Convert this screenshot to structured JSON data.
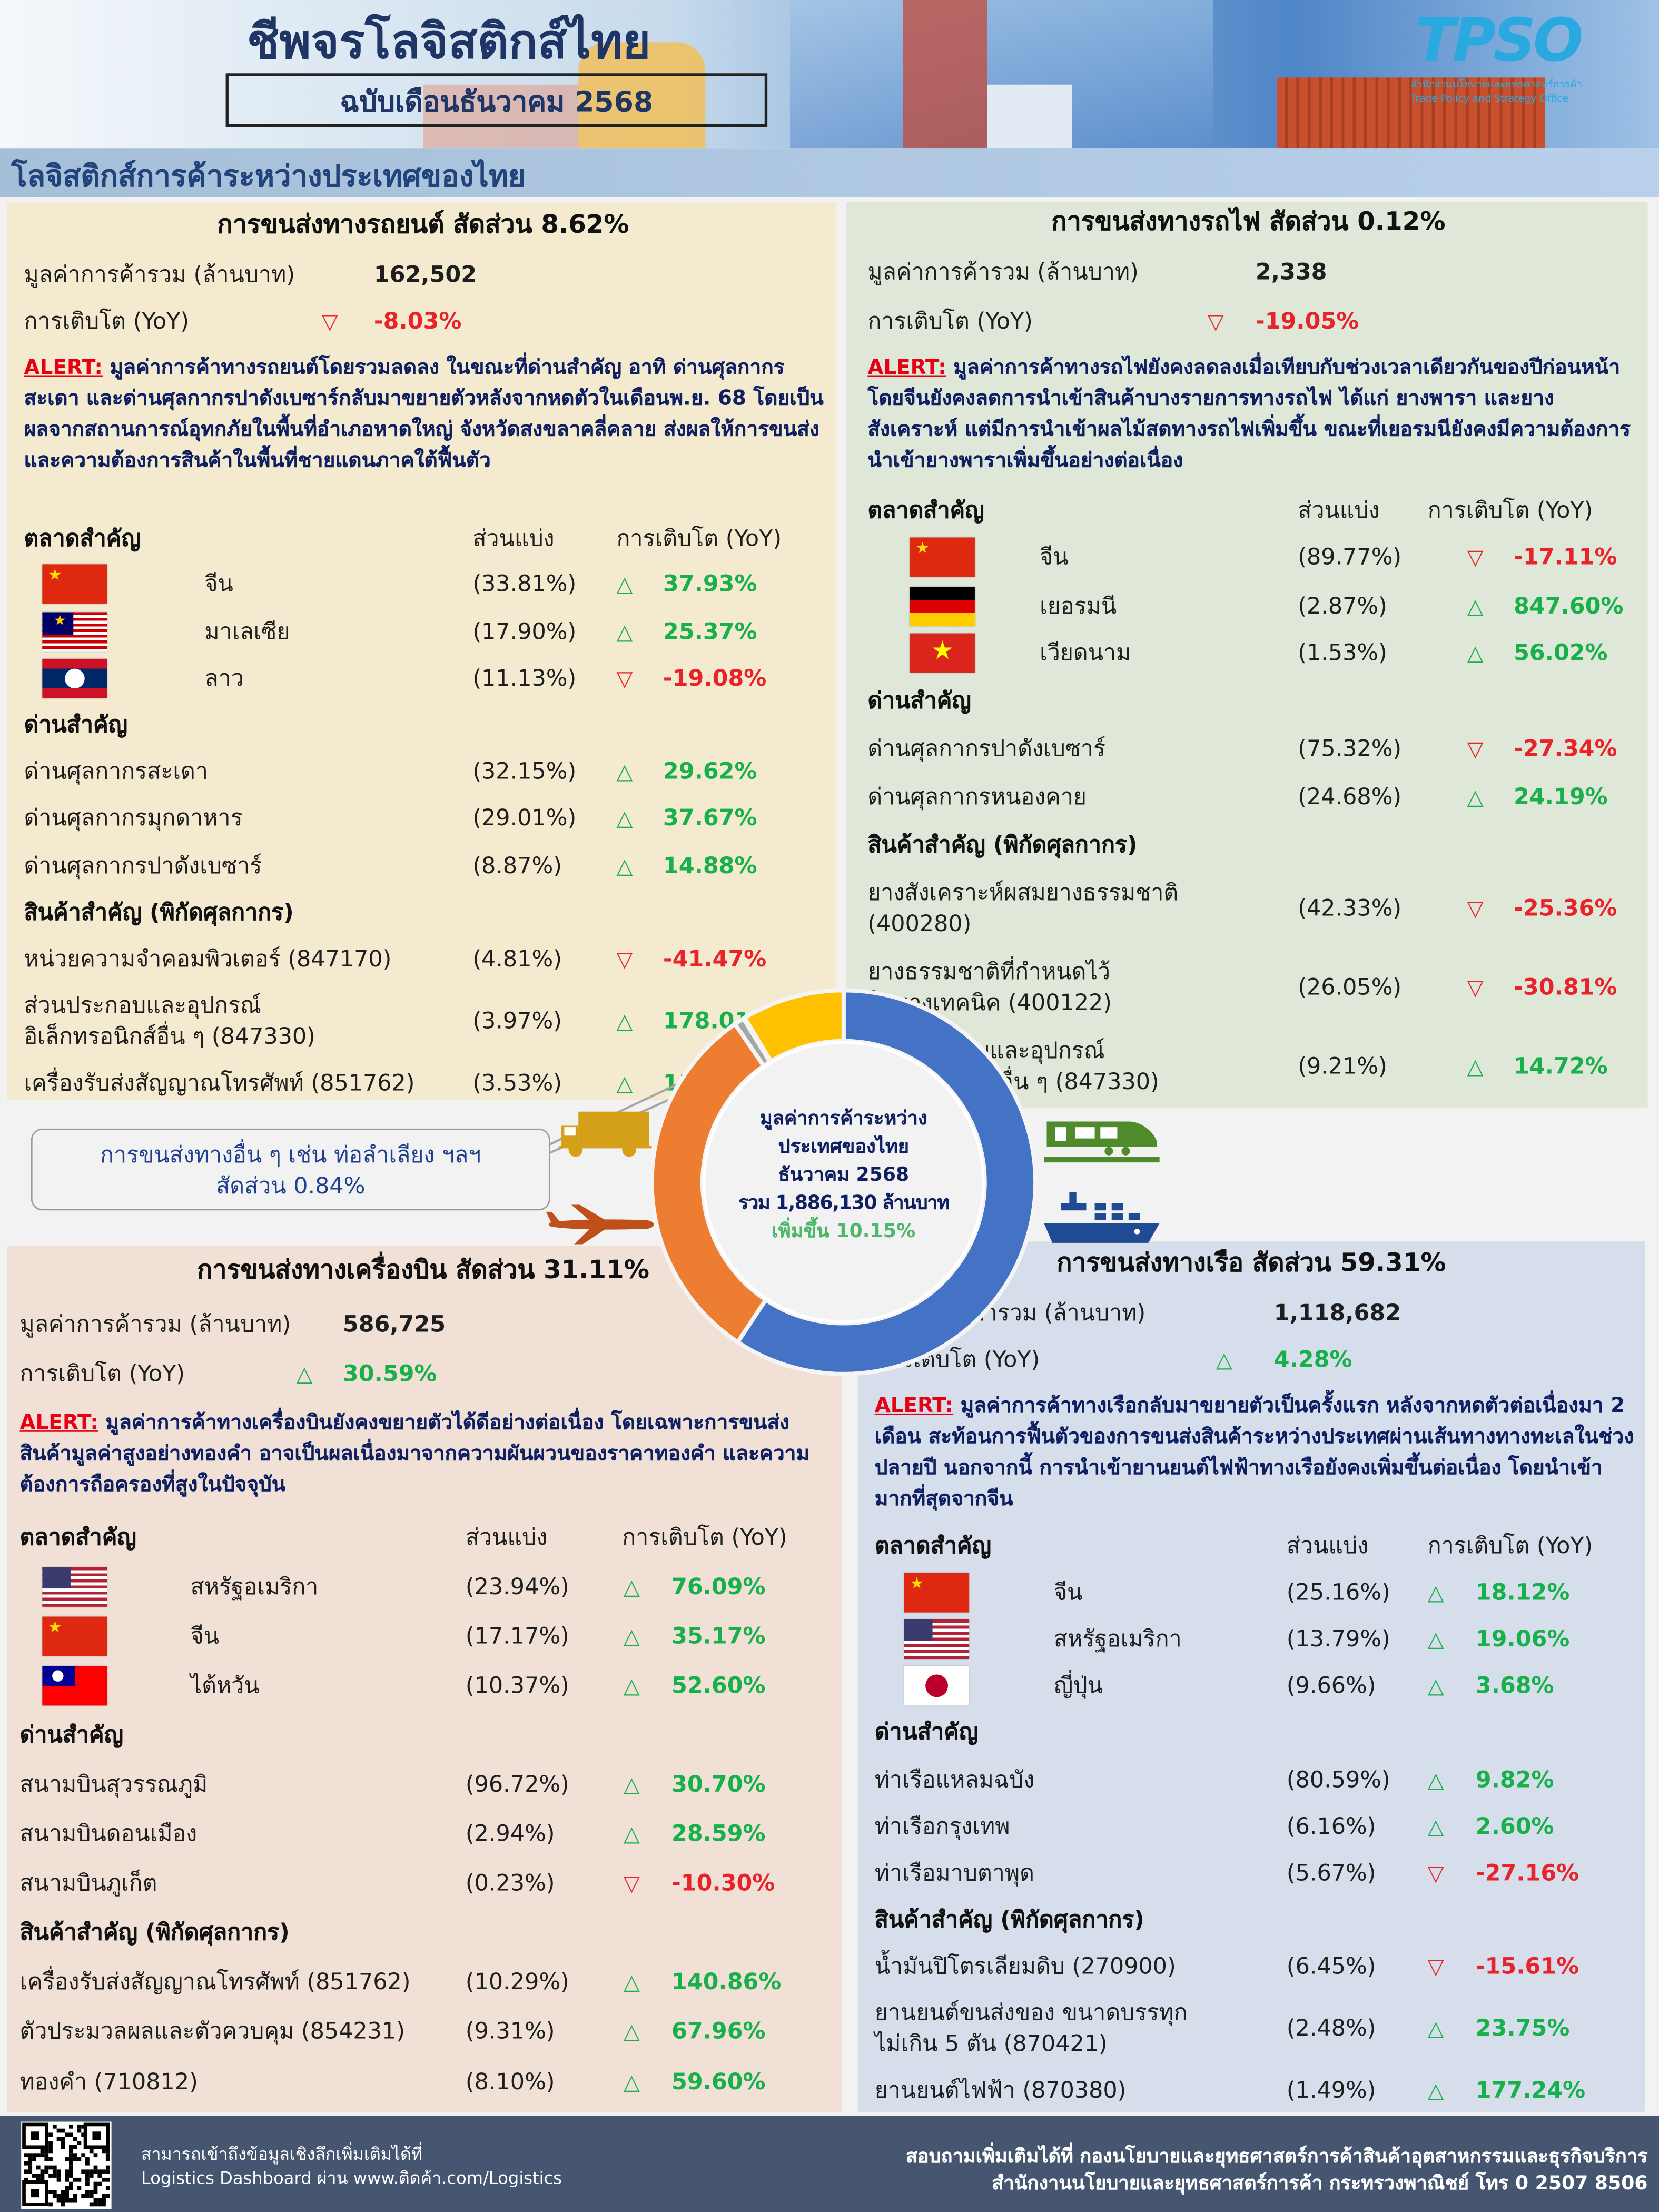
{
  "header": {
    "title": "ชีพจรโลจิสติกส์ไทย",
    "subtitle": "ฉบับเดือนธันวาคม 2568",
    "logo_text": "TPSO",
    "logo_org_th": "สำนักงานนโยบายและยุทธศาสตร์การค้า",
    "logo_org_en": "Trade Policy and Strategy Office",
    "section_title": "โลจิสติกส์การค้าระหว่างประเทศของไทย"
  },
  "colors": {
    "navy": "#0f2062",
    "up": "#18b04a",
    "down": "#e8242a",
    "alert": "#e60012",
    "car_bg": "#f3ead0",
    "rail_bg": "#dfe7d8",
    "air_bg": "#f0e0d6",
    "sea_bg": "#d6deec"
  },
  "icons": {
    "up": "△",
    "down": "▽",
    "truck": "truck-icon",
    "train": "train-icon",
    "plane": "plane-icon",
    "ship": "ship-icon"
  },
  "common": {
    "total_label": "มูลค่าการค้ารวม (ล้านบาท)",
    "growth_label": "การเติบโต (YoY)",
    "alert_label": "ALERT:",
    "markets_header": "ตลาดสำคัญ",
    "share_header": "ส่วนแบ่ง",
    "growth_header": "การเติบโต (YoY)",
    "checkpoints_header": "ด่านสำคัญ",
    "products_header": "สินค้าสำคัญ (พิกัดศุลกากร)"
  },
  "panels": {
    "car": {
      "title": "การขนส่งทางรถยนต์ สัดส่วน 8.62%",
      "total": "162,502",
      "growth": "-8.03%",
      "dir": "down",
      "alert": "มูลค่าการค้าทางรถยนต์โดยรวมลดลง ในขณะที่ด่านสำคัญ อาทิ ด่านศุลกากรสะเดา และด่านศุลกากรปาดังเบซาร์กลับมาขยายตัวหลังจากหดตัวในเดือนพ.ย. 68 โดยเป็นผลจากสถานการณ์อุทกภัยในพื้นที่อำเภอหาดใหญ่ จังหวัดสงขลาคลี่คลาย ส่งผลให้การขนส่งและความต้องการสินค้าในพื้นที่ชายแดนภาคใต้ฟื้นตัว",
      "markets": [
        {
          "name": "จีน",
          "flag": "china",
          "share": "(33.81%)",
          "growth": "37.93%",
          "dir": "up"
        },
        {
          "name": "มาเลเซีย",
          "flag": "malaysia",
          "share": "(17.90%)",
          "growth": "25.37%",
          "dir": "up"
        },
        {
          "name": "ลาว",
          "flag": "laos",
          "share": "(11.13%)",
          "growth": "-19.08%",
          "dir": "down"
        }
      ],
      "checkpoints": [
        {
          "name": "ด่านศุลกากรสะเดา",
          "share": "(32.15%)",
          "growth": "29.62%",
          "dir": "up"
        },
        {
          "name": "ด่านศุลกากรมุกดาหาร",
          "share": "(29.01%)",
          "growth": "37.67%",
          "dir": "up"
        },
        {
          "name": "ด่านศุลกากรปาดังเบซาร์",
          "share": "(8.87%)",
          "growth": "14.88%",
          "dir": "up"
        }
      ],
      "products": [
        {
          "name": "หน่วยความจำคอมพิวเตอร์ (847170)",
          "share": "(4.81%)",
          "growth": "-41.47%",
          "dir": "down"
        },
        {
          "name": "ส่วนประกอบและอุปกรณ์\nอิเล็กทรอนิกส์อื่น ๆ (847330)",
          "share": "(3.97%)",
          "growth": "178.01%",
          "dir": "up"
        },
        {
          "name": "เครื่องรับส่งสัญญาณโทรศัพท์ (851762)",
          "share": "(3.53%)",
          "growth": "158.22%",
          "dir": "up"
        }
      ]
    },
    "rail": {
      "title": "การขนส่งทางรถไฟ สัดส่วน 0.12%",
      "total": "2,338",
      "growth": "-19.05%",
      "dir": "down",
      "alert": "มูลค่าการค้าทางรถไฟยังคงลดลงเมื่อเทียบกับช่วงเวลาเดียวกันของปีก่อนหน้า โดยจีนยังคงลดการนำเข้าสินค้าบางรายการทางรถไฟ ได้แก่ ยางพารา และยางสังเคราะห์ แต่มีการนำเข้าผลไม้สดทางรถไฟเพิ่มขึ้น ขณะที่เยอรมนียังคงมีความต้องการนำเข้ายางพาราเพิ่มขึ้นอย่างต่อเนื่อง",
      "markets": [
        {
          "name": "จีน",
          "flag": "china",
          "share": "(89.77%)",
          "growth": "-17.11%",
          "dir": "down"
        },
        {
          "name": "เยอรมนี",
          "flag": "germany",
          "share": "(2.87%)",
          "growth": "847.60%",
          "dir": "up"
        },
        {
          "name": "เวียดนาม",
          "flag": "vietnam",
          "share": "(1.53%)",
          "growth": "56.02%",
          "dir": "up"
        }
      ],
      "checkpoints": [
        {
          "name": "ด่านศุลกากรปาดังเบซาร์",
          "share": "(75.32%)",
          "growth": "-27.34%",
          "dir": "down"
        },
        {
          "name": "ด่านศุลกากรหนองคาย",
          "share": "(24.68%)",
          "growth": "24.19%",
          "dir": "up"
        }
      ],
      "products": [
        {
          "name": "ยางสังเคราะห์ผสมยางธรรมชาติ\n(400280)",
          "share": "(42.33%)",
          "growth": "-25.36%",
          "dir": "down"
        },
        {
          "name": "ยางธรรมชาติที่กำหนดไว้\nในทางเทคนิค (400122)",
          "share": "(26.05%)",
          "growth": "-30.81%",
          "dir": "down"
        },
        {
          "name": "ส่วนประกอบและอุปกรณ์\nอิเล็กทรอนิกส์อื่น ๆ (847330)",
          "share": "(9.21%)",
          "growth": "14.72%",
          "dir": "up"
        }
      ]
    },
    "air": {
      "title": "การขนส่งทางเครื่องบิน สัดส่วน 31.11%",
      "total": "586,725",
      "growth": "30.59%",
      "dir": "up",
      "alert": "มูลค่าการค้าทางเครื่องบินยังคงขยายตัวได้ดีอย่างต่อเนื่อง โดยเฉพาะการขนส่งสินค้ามูลค่าสูงอย่างทองคำ อาจเป็นผลเนื่องมาจากความผันผวนของราคาทองคำ และความต้องการถือครองที่สูงในปัจจุบัน",
      "markets": [
        {
          "name": "สหรัฐอเมริกา",
          "flag": "usa",
          "share": "(23.94%)",
          "growth": "76.09%",
          "dir": "up"
        },
        {
          "name": "จีน",
          "flag": "china",
          "share": "(17.17%)",
          "growth": "35.17%",
          "dir": "up"
        },
        {
          "name": "ไต้หวัน",
          "flag": "taiwan",
          "share": "(10.37%)",
          "growth": "52.60%",
          "dir": "up"
        }
      ],
      "checkpoints": [
        {
          "name": "สนามบินสุวรรณภูมิ",
          "share": "(96.72%)",
          "growth": "30.70%",
          "dir": "up"
        },
        {
          "name": "สนามบินดอนเมือง",
          "share": "(2.94%)",
          "growth": "28.59%",
          "dir": "up"
        },
        {
          "name": "สนามบินภูเก็ต",
          "share": "(0.23%)",
          "growth": "-10.30%",
          "dir": "down"
        }
      ],
      "products": [
        {
          "name": "เครื่องรับส่งสัญญาณโทรศัพท์ (851762)",
          "share": "(10.29%)",
          "growth": "140.86%",
          "dir": "up"
        },
        {
          "name": "ตัวประมวลผลและตัวควบคุม (854231)",
          "share": "(9.31%)",
          "growth": "67.96%",
          "dir": "up"
        },
        {
          "name": "ทองคำ (710812)",
          "share": "(8.10%)",
          "growth": "59.60%",
          "dir": "up"
        }
      ]
    },
    "sea": {
      "title": "การขนส่งทางเรือ สัดส่วน 59.31%",
      "total": "1,118,682",
      "growth": "4.28%",
      "dir": "up",
      "alert": "มูลค่าการค้าทางเรือกลับมาขยายตัวเป็นครั้งแรก หลังจากหดตัวต่อเนื่องมา 2 เดือน สะท้อนการฟื้นตัวของการขนส่งสินค้าระหว่างประเทศผ่านเส้นทางทางทะเลในช่วงปลายปี นอกจากนี้ การนำเข้ายานยนต์ไฟฟ้าทางเรือยังคงเพิ่มขึ้นต่อเนื่อง โดยนำเข้ามากที่สุดจากจีน",
      "markets": [
        {
          "name": "จีน",
          "flag": "china",
          "share": "(25.16%)",
          "growth": "18.12%",
          "dir": "up"
        },
        {
          "name": "สหรัฐอเมริกา",
          "flag": "usa",
          "share": "(13.79%)",
          "growth": "19.06%",
          "dir": "up"
        },
        {
          "name": "ญี่ปุ่น",
          "flag": "japan",
          "share": "(9.66%)",
          "growth": "3.68%",
          "dir": "up"
        }
      ],
      "checkpoints": [
        {
          "name": "ท่าเรือแหลมฉบัง",
          "share": "(80.59%)",
          "growth": "9.82%",
          "dir": "up"
        },
        {
          "name": "ท่าเรือกรุงเทพ",
          "share": "(6.16%)",
          "growth": "2.60%",
          "dir": "up"
        },
        {
          "name": "ท่าเรือมาบตาพุด",
          "share": "(5.67%)",
          "growth": "-27.16%",
          "dir": "down"
        }
      ],
      "products": [
        {
          "name": "น้ำมันปิโตรเลียมดิบ (270900)",
          "share": "(6.45%)",
          "growth": "-15.61%",
          "dir": "down"
        },
        {
          "name": "ยานยนต์ขนส่งของ ขนาดบรรทุก\nไม่เกิน 5 ตัน (870421)",
          "share": "(2.48%)",
          "growth": "23.75%",
          "dir": "up"
        },
        {
          "name": "ยานยนต์ไฟฟ้า (870380)",
          "share": "(1.49%)",
          "growth": "177.24%",
          "dir": "up"
        }
      ]
    }
  },
  "other": {
    "line1": "การขนส่งทางอื่น ๆ เช่น ท่อลำเลียง ฯลฯ",
    "line2": "สัดส่วน 0.84%"
  },
  "center": {
    "line1": "มูลค่าการค้าระหว่าง",
    "line2": "ประเทศของไทย",
    "line3": "ธันวาคม 2568",
    "line4": "รวม 1,886,130 ล้านบาท",
    "line5": "เพิ่มขึ้น 10.15%"
  },
  "chart_data": {
    "type": "pie",
    "title": "มูลค่าการค้าระหว่างประเทศของไทย ธันวาคม 2568",
    "categories": [
      "ทางเรือ",
      "ทางเครื่องบิน",
      "ทางอื่น ๆ",
      "ทางรถไฟ",
      "ทางรถยนต์"
    ],
    "values": [
      59.31,
      31.11,
      0.84,
      0.12,
      8.62
    ],
    "colors": [
      "#4472c4",
      "#ed7d31",
      "#a5a5a5",
      "#b0aa8c",
      "#ffc000"
    ]
  },
  "footer": {
    "left1": "สามารถเข้าถึงข้อมูลเชิงลึกเพิ่มเติมได้ที่",
    "left2": "Logistics Dashboard ผ่าน www.ติดค้า.com/Logistics",
    "right1": "สอบถามเพิ่มเติมได้ที่ กองนโยบายและยุทธศาสตร์การค้าสินค้าอุตสาหกรรมและธุรกิจบริการ",
    "right2": "สำนักงานนโยบายและยุทธศาสตร์การค้า กระทรวงพาณิชย์ โทร 0 2507 8506"
  }
}
